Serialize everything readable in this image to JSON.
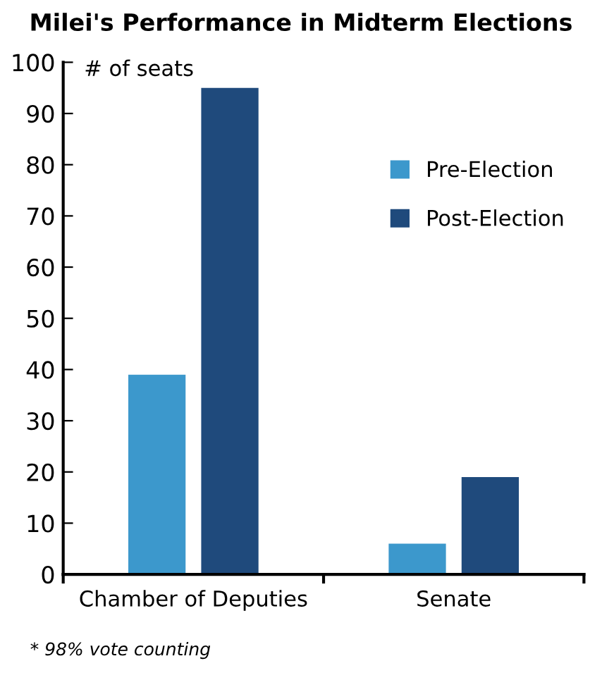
{
  "chart_data": {
    "type": "bar",
    "title": "Milei's Performance in Midterm Elections",
    "ylabel": "# of seats",
    "categories": [
      "Chamber of Deputies",
      "Senate"
    ],
    "series": [
      {
        "name": "Pre-Election",
        "color": "#3c98cc",
        "values": [
          39,
          6
        ]
      },
      {
        "name": "Post-Election",
        "color": "#1f4a7c",
        "values": [
          95,
          19
        ]
      }
    ],
    "ylim": [
      0,
      100
    ],
    "yticks": [
      0,
      10,
      20,
      30,
      40,
      50,
      60,
      70,
      80,
      90,
      100
    ],
    "grid": false,
    "legend": "right",
    "annotations": [
      "* 98% vote counting"
    ]
  }
}
